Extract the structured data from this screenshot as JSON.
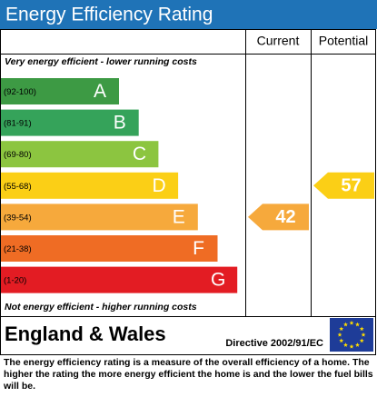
{
  "chart_data": {
    "type": "epc",
    "title": "Energy Efficiency Rating",
    "columns": [
      "Current",
      "Potential"
    ],
    "top_note": "Very energy efficient - lower running costs",
    "bottom_note": "Not energy efficient - higher running costs",
    "bands": [
      {
        "range": "(92-100)",
        "letter": "A",
        "color": "#3d9a44"
      },
      {
        "range": "(81-91)",
        "letter": "B",
        "color": "#35a35a"
      },
      {
        "range": "(69-80)",
        "letter": "C",
        "color": "#8cc540"
      },
      {
        "range": "(55-68)",
        "letter": "D",
        "color": "#fbcf16"
      },
      {
        "range": "(39-54)",
        "letter": "E",
        "color": "#f6a93c"
      },
      {
        "range": "(21-38)",
        "letter": "F",
        "color": "#ef6c24"
      },
      {
        "range": "(1-20)",
        "letter": "G",
        "color": "#e31c23"
      }
    ],
    "current": 42,
    "potential": 57,
    "region": "England & Wales",
    "directive": "Directive 2002/91/EC",
    "footnote": "The energy efficiency rating is a measure of the overall efficiency of a home. The higher the rating the more energy efficient the home is and the lower the fuel bills will be."
  }
}
